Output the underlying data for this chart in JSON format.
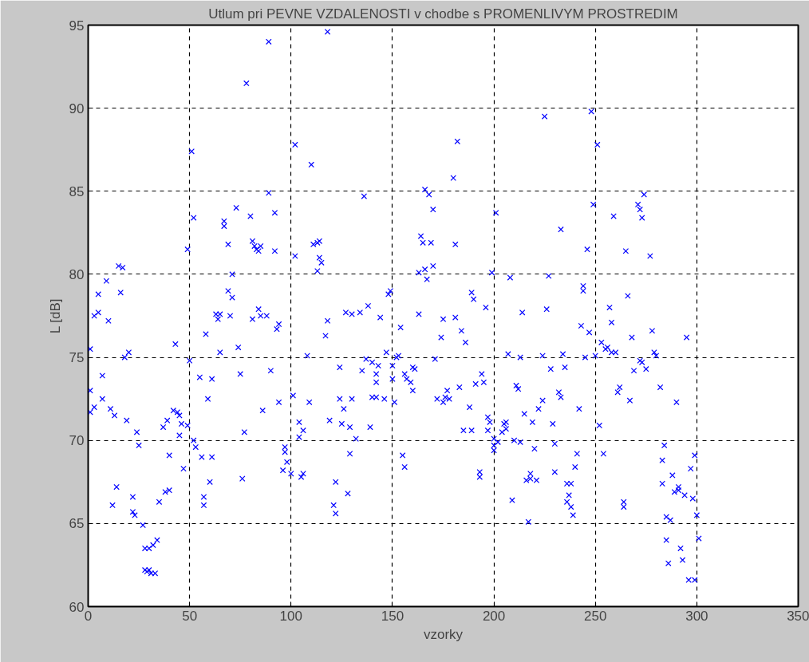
{
  "chart_data": {
    "type": "scatter",
    "title": "Utlum pri PEVNE VZDALENOSTI v chodbe s PROMENLIVYM PROSTREDIM",
    "xlabel": "vzorky",
    "ylabel": "L [dB]",
    "xlim": [
      0,
      350
    ],
    "ylim": [
      60,
      95
    ],
    "xticks": [
      0,
      50,
      100,
      150,
      200,
      250,
      300,
      350
    ],
    "yticks": [
      60,
      65,
      70,
      75,
      80,
      85,
      90,
      95
    ],
    "grid": true,
    "marker": "cross",
    "series": [
      {
        "color": "#0000ff",
        "x": [
          1,
          1,
          1,
          3,
          3,
          5,
          5,
          7,
          7,
          9,
          10,
          11,
          12,
          13,
          14,
          15,
          16,
          17,
          18,
          19,
          20,
          22,
          22,
          23,
          24,
          25,
          27,
          28,
          28,
          29,
          30,
          30,
          31,
          32,
          33,
          34,
          35,
          37,
          38,
          39,
          40,
          40,
          42,
          43,
          44,
          45,
          45,
          46,
          47,
          49,
          49,
          50,
          51,
          52,
          52,
          53,
          55,
          56,
          57,
          57,
          58,
          59,
          60,
          61,
          61,
          63,
          64,
          65,
          65,
          67,
          67,
          69,
          69,
          70,
          71,
          71,
          73,
          74,
          75,
          76,
          77,
          78,
          80,
          81,
          81,
          82,
          83,
          84,
          84,
          85,
          85,
          86,
          88,
          89,
          89,
          90,
          92,
          92,
          93,
          94,
          94,
          96,
          97,
          97,
          98,
          100,
          101,
          102,
          102,
          104,
          104,
          105,
          106,
          106,
          108,
          109,
          110,
          111,
          113,
          113,
          114,
          114,
          115,
          117,
          118,
          118,
          119,
          121,
          122,
          122,
          124,
          124,
          125,
          126,
          127,
          128,
          129,
          129,
          130,
          130,
          132,
          134,
          135,
          136,
          137,
          138,
          139,
          140,
          140,
          142,
          142,
          142,
          143,
          144,
          146,
          147,
          148,
          149,
          150,
          150,
          151,
          152,
          153,
          154,
          155,
          156,
          156,
          157,
          159,
          160,
          160,
          161,
          163,
          163,
          164,
          165,
          166,
          166,
          167,
          168,
          169,
          170,
          170,
          171,
          172,
          174,
          175,
          175,
          176,
          177,
          178,
          180,
          181,
          181,
          182,
          183,
          184,
          185,
          186,
          188,
          189,
          189,
          190,
          191,
          193,
          193,
          194,
          195,
          196,
          197,
          197,
          198,
          199,
          200,
          200,
          200,
          201,
          202,
          204,
          205,
          206,
          206,
          207,
          208,
          209,
          210,
          211,
          212,
          213,
          213,
          214,
          215,
          216,
          217,
          218,
          218,
          219,
          220,
          221,
          222,
          224,
          224,
          225,
          226,
          227,
          228,
          229,
          230,
          230,
          232,
          233,
          233,
          234,
          235,
          236,
          236,
          237,
          238,
          238,
          239,
          240,
          241,
          242,
          243,
          244,
          244,
          245,
          246,
          247,
          248,
          249,
          250,
          251,
          252,
          253,
          254,
          255,
          256,
          257,
          258,
          258,
          259,
          260,
          261,
          262,
          264,
          264,
          265,
          266,
          267,
          268,
          269,
          271,
          272,
          272,
          273,
          273,
          274,
          275,
          277,
          278,
          279,
          280,
          282,
          283,
          283,
          284,
          285,
          285,
          286,
          287,
          288,
          289,
          290,
          291,
          291,
          292,
          293,
          294,
          295,
          296,
          297,
          298,
          299,
          299,
          300,
          301
        ],
        "values": [
          75.5,
          73,
          71.7,
          77.5,
          72,
          78.8,
          77.7,
          73.9,
          72.5,
          79.6,
          77.2,
          71.9,
          66.1,
          71.5,
          67.2,
          80.5,
          78.9,
          80.4,
          75,
          71.2,
          75.3,
          65.7,
          66.6,
          65.5,
          70.5,
          69.7,
          64.9,
          63.5,
          62.2,
          62.1,
          62.2,
          63.5,
          62,
          63.7,
          62,
          64,
          66.3,
          70.8,
          66.9,
          71.2,
          69.1,
          67,
          71.8,
          75.8,
          71.7,
          70.3,
          71.5,
          71,
          68.3,
          81.5,
          70.9,
          74.8,
          87.4,
          83.4,
          70,
          69.6,
          73.8,
          69,
          66.6,
          66.1,
          76.4,
          72.5,
          67.5,
          73.7,
          69,
          77.6,
          77.3,
          75.3,
          77.6,
          82.9,
          83.2,
          81.8,
          79,
          77.5,
          78.6,
          80,
          84,
          75.6,
          74,
          67.7,
          70.5,
          91.5,
          83.5,
          82,
          77.3,
          81.7,
          81.5,
          77.9,
          81.4,
          77.5,
          81.7,
          71.8,
          77.5,
          94,
          84.9,
          74.2,
          83.7,
          81.4,
          76.7,
          77,
          72.3,
          68.2,
          69.6,
          69.3,
          68.7,
          68,
          72.7,
          87.8,
          81.1,
          71.1,
          70.2,
          67.8,
          70.6,
          68,
          75.1,
          72.3,
          86.6,
          81.8,
          80.2,
          81.9,
          82,
          81,
          80.7,
          76.3,
          94.6,
          77.2,
          71.2,
          66.1,
          67.5,
          65.6,
          72.5,
          74.4,
          71,
          71.9,
          77.7,
          66.8,
          70.8,
          69.2,
          77.6,
          72.5,
          70.1,
          77.7,
          74.2,
          84.7,
          74.9,
          78.1,
          70.8,
          72.6,
          74.7,
          74,
          73.5,
          72.6,
          74.5,
          77.4,
          72.5,
          75.3,
          78.8,
          79,
          73.7,
          74.5,
          72.3,
          75,
          75.1,
          76.8,
          69.1,
          68.4,
          74,
          73.7,
          73.5,
          74.4,
          73,
          74.3,
          80.1,
          77.6,
          82.3,
          81.9,
          85.1,
          80.3,
          79.7,
          84.8,
          81.9,
          83.9,
          80.5,
          74.9,
          72.5,
          76.2,
          72.3,
          77.3,
          72.6,
          73,
          72.5,
          85.8,
          81.8,
          77.4,
          88,
          73.2,
          76.6,
          70.6,
          75.9,
          72,
          78.9,
          70.6,
          78.5,
          73.4,
          67.8,
          68.1,
          74,
          73.5,
          78,
          71.4,
          70.6,
          71.1,
          80.1,
          69.4,
          70.1,
          69.7,
          83.7,
          69.9,
          70.5,
          71,
          71.1,
          70.7,
          75.2,
          79.8,
          66.4,
          70,
          73.3,
          73.1,
          75,
          69.9,
          77.7,
          71.6,
          67.6,
          65.1,
          68,
          67.7,
          71.1,
          69.5,
          67.6,
          71.9,
          72.4,
          75.1,
          89.5,
          77.9,
          79.9,
          74.3,
          71,
          69.8,
          68.1,
          72.9,
          82.7,
          72.6,
          75.2,
          74.4,
          66.3,
          67.4,
          66.7,
          66,
          67.4,
          65.5,
          68.4,
          69.2,
          71.9,
          76.9,
          79,
          79.3,
          75,
          81.5,
          76.5,
          89.8,
          84.2,
          75.1,
          87.8,
          70.9,
          75.9,
          69.2,
          75.5,
          75.6,
          78,
          75.3,
          77.1,
          83.5,
          75.3,
          72.9,
          73.2,
          66.3,
          66,
          81.4,
          78.7,
          72.4,
          76.2,
          74.2,
          84.2,
          74.8,
          83.9,
          83.4,
          74.7,
          84.8,
          74.3,
          81.1,
          76.6,
          75.3,
          75.1,
          73.2,
          68.8,
          67.4,
          69.7,
          65.4,
          64,
          62.6,
          65.2,
          67.9,
          66.9,
          72.3,
          67.2,
          67,
          63.5,
          62.8,
          66.7,
          76.2,
          61.6,
          68.3,
          66.5,
          61.6,
          69.1,
          65.5,
          64.1
        ]
      }
    ]
  }
}
